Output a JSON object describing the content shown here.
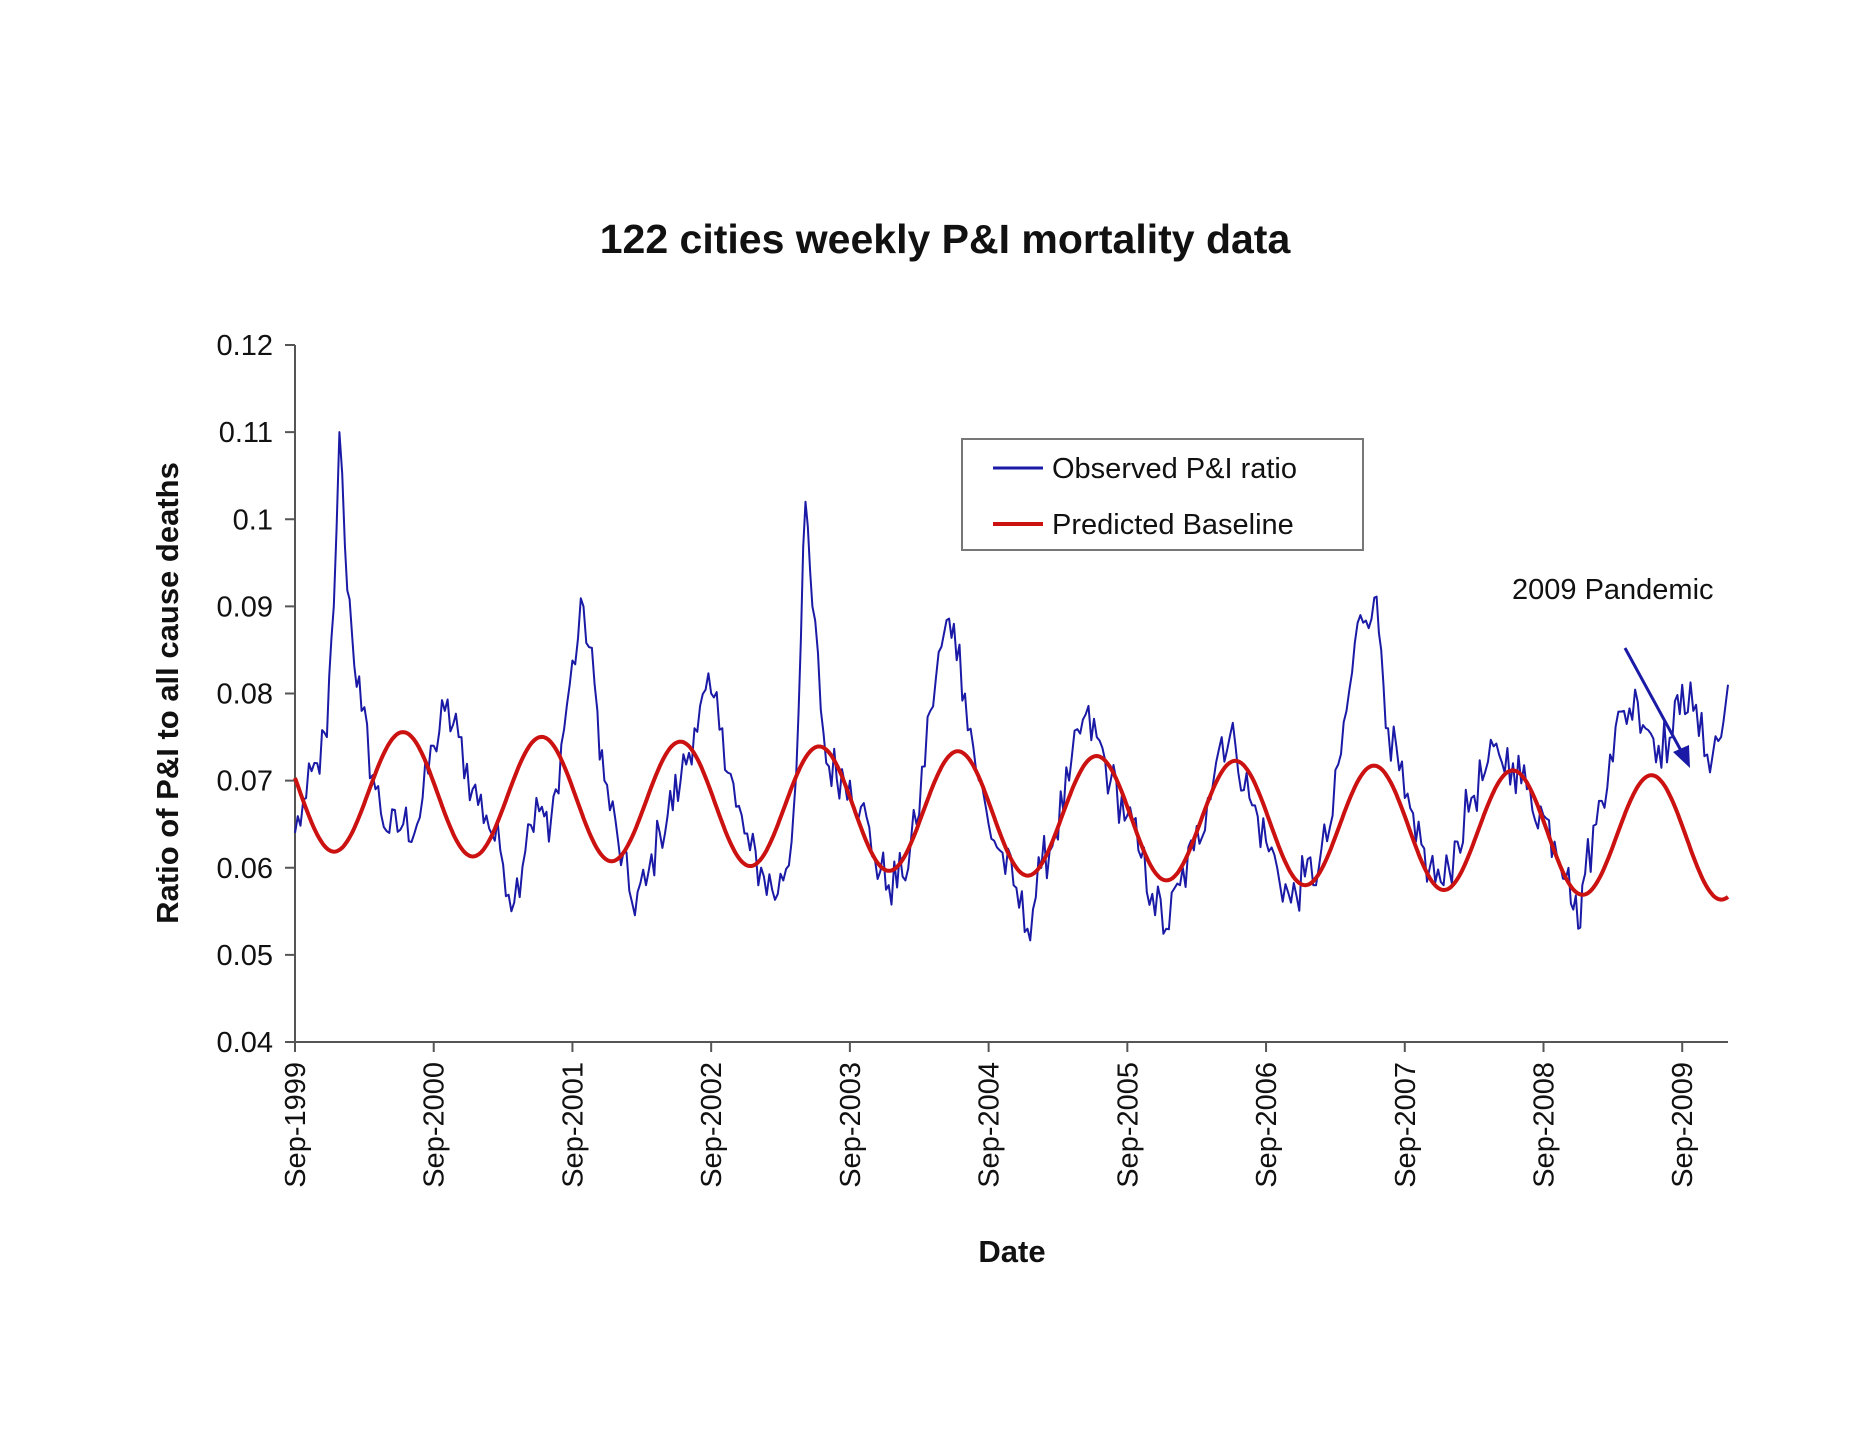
{
  "chart_data": {
    "type": "line",
    "title": "122 cities weekly P&I mortality data",
    "xlabel": "Date",
    "ylabel": "Ratio of P&I to all cause deaths",
    "x_start_year": 1999.67,
    "x_end_year": 2010.0,
    "ylim": [
      0.04,
      0.12
    ],
    "yticks": [
      0.04,
      0.05,
      0.06,
      0.07,
      0.08,
      0.09,
      0.1,
      0.11,
      0.12
    ],
    "ytick_labels": [
      "0.04",
      "0.05",
      "0.06",
      "0.07",
      "0.08",
      "0.09",
      "0.1",
      "0.11",
      "0.12"
    ],
    "xtick_years": [
      1999.67,
      2000.67,
      2001.67,
      2002.67,
      2003.67,
      2004.67,
      2005.67,
      2006.67,
      2007.67,
      2008.67,
      2009.67
    ],
    "xtick_labels": [
      "Sep-1999",
      "Sep-2000",
      "Sep-2001",
      "Sep-2002",
      "Sep-2003",
      "Sep-2004",
      "Sep-2005",
      "Sep-2006",
      "Sep-2007",
      "Sep-2008",
      "Sep-2009"
    ],
    "grid": false,
    "legend": {
      "position": "top-center",
      "entries": [
        "Observed P&I ratio",
        "Predicted Baseline"
      ]
    },
    "annotation": {
      "text": "2009 Pandemic",
      "arrow_to": {
        "x": 2009.8,
        "y": 0.072
      }
    },
    "series": [
      {
        "name": "Observed P&I ratio",
        "color": "#1a1aa6",
        "x": [
          1999.67,
          1999.75,
          1999.83,
          1999.9,
          1999.95,
          1999.99,
          2000.03,
          2000.08,
          2000.15,
          2000.25,
          2000.35,
          2000.45,
          2000.55,
          2000.67,
          2000.75,
          2000.85,
          2000.95,
          2001.05,
          2001.15,
          2001.25,
          2001.35,
          2001.45,
          2001.5,
          2001.55,
          2001.65,
          2001.75,
          2001.85,
          2001.9,
          2002.0,
          2002.1,
          2002.2,
          2002.3,
          2002.45,
          2002.55,
          2002.67,
          2002.75,
          2002.85,
          2002.95,
          2003.05,
          2003.15,
          2003.25,
          2003.3,
          2003.35,
          2003.4,
          2003.5,
          2003.67,
          2003.75,
          2003.85,
          2003.95,
          2004.05,
          2004.15,
          2004.25,
          2004.35,
          2004.42,
          2004.5,
          2004.6,
          2004.67,
          2004.75,
          2004.85,
          2004.95,
          2005.05,
          2005.15,
          2005.25,
          2005.35,
          2005.45,
          2005.55,
          2005.67,
          2005.75,
          2005.85,
          2005.95,
          2006.05,
          2006.15,
          2006.25,
          2006.35,
          2006.45,
          2006.55,
          2006.67,
          2006.75,
          2006.85,
          2006.95,
          2007.05,
          2007.15,
          2007.25,
          2007.35,
          2007.45,
          2007.5,
          2007.55,
          2007.67,
          2007.75,
          2007.85,
          2007.95,
          2008.05,
          2008.15,
          2008.25,
          2008.35,
          2008.45,
          2008.55,
          2008.67,
          2008.75,
          2008.85,
          2008.92,
          2008.95,
          2009.05,
          2009.15,
          2009.25,
          2009.35,
          2009.5,
          2009.6,
          2009.67,
          2009.75,
          2009.85,
          2009.95,
          2010.0
        ],
        "values": [
          0.064,
          0.068,
          0.072,
          0.075,
          0.09,
          0.11,
          0.097,
          0.087,
          0.078,
          0.069,
          0.064,
          0.065,
          0.065,
          0.074,
          0.078,
          0.075,
          0.069,
          0.066,
          0.062,
          0.056,
          0.065,
          0.067,
          0.063,
          0.069,
          0.081,
          0.09,
          0.078,
          0.07,
          0.063,
          0.056,
          0.058,
          0.064,
          0.07,
          0.076,
          0.08,
          0.076,
          0.067,
          0.062,
          0.059,
          0.057,
          0.063,
          0.078,
          0.102,
          0.09,
          0.072,
          0.07,
          0.067,
          0.061,
          0.058,
          0.059,
          0.065,
          0.078,
          0.087,
          0.088,
          0.08,
          0.07,
          0.065,
          0.062,
          0.058,
          0.053,
          0.06,
          0.064,
          0.07,
          0.077,
          0.075,
          0.07,
          0.066,
          0.062,
          0.057,
          0.053,
          0.058,
          0.062,
          0.068,
          0.075,
          0.074,
          0.068,
          0.063,
          0.06,
          0.056,
          0.059,
          0.06,
          0.066,
          0.078,
          0.089,
          0.091,
          0.085,
          0.076,
          0.068,
          0.063,
          0.06,
          0.058,
          0.063,
          0.068,
          0.071,
          0.073,
          0.072,
          0.069,
          0.066,
          0.063,
          0.06,
          0.053,
          0.058,
          0.065,
          0.073,
          0.078,
          0.079,
          0.074,
          0.075,
          0.081,
          0.078,
          0.073,
          0.075,
          0.081
        ]
      },
      {
        "name": "Predicted Baseline",
        "color": "#cc1111",
        "model": {
          "mean_start": 0.069,
          "mean_slope": -0.00055,
          "amplitude": 0.007,
          "period_years": 1.0,
          "peak_year_fraction": 0.45
        }
      }
    ]
  }
}
